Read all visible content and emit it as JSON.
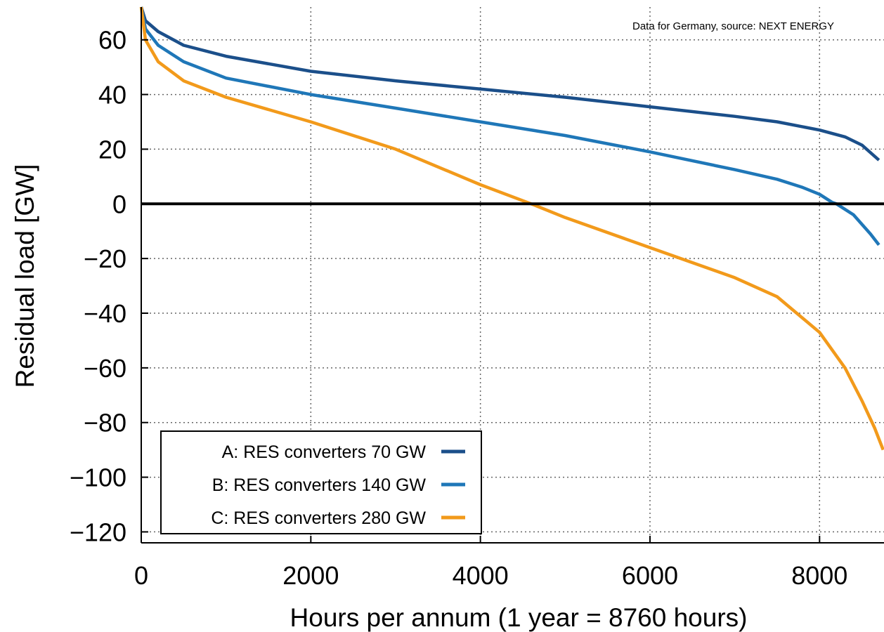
{
  "chart_data": {
    "type": "line",
    "source_note": "Data for Germany, source: NEXT ENERGY",
    "xlabel": "Hours per annum (1 year = 8760 hours)",
    "ylabel": "Residual load [GW]",
    "xlim": [
      0,
      8760
    ],
    "ylim": [
      -124,
      72
    ],
    "xticks": [
      0,
      2000,
      4000,
      6000,
      8000
    ],
    "xtick_labels": [
      "0",
      "2000",
      "4000",
      "6000",
      "8000"
    ],
    "yticks": [
      60,
      40,
      20,
      0,
      -20,
      -40,
      -60,
      -80,
      -100,
      -120
    ],
    "ytick_labels": [
      "60",
      "40",
      "20",
      "0",
      "−20",
      "−40",
      "−60",
      "−80",
      "−100",
      "−120"
    ],
    "grid": true,
    "zero_line": true,
    "legend_position": "bottom-left",
    "series": [
      {
        "name": "A: RES converters   70 GW",
        "color": "#1b4f8a",
        "x": [
          0,
          50,
          200,
          500,
          1000,
          2000,
          3000,
          4000,
          5000,
          6000,
          7000,
          7500,
          8000,
          8300,
          8500,
          8700
        ],
        "y": [
          72,
          67,
          63,
          58,
          54,
          48.5,
          45,
          42,
          39,
          35.5,
          32,
          30,
          27,
          24.5,
          21.5,
          16
        ]
      },
      {
        "name": "B: RES converters 140 GW",
        "color": "#1f77b8",
        "x": [
          0,
          50,
          200,
          500,
          1000,
          2000,
          3000,
          4000,
          5000,
          6000,
          7000,
          7500,
          7800,
          8000,
          8150,
          8200,
          8400,
          8600,
          8700
        ],
        "y": [
          72,
          64,
          58,
          52,
          46,
          40,
          35,
          30,
          25,
          19,
          12.5,
          9,
          6,
          3.5,
          0.5,
          0,
          -4,
          -11,
          -15
        ]
      },
      {
        "name": "C: RES converters 280 GW",
        "color": "#f29a1b",
        "x": [
          0,
          50,
          200,
          500,
          1000,
          2000,
          3000,
          4000,
          4600,
          5000,
          6000,
          7000,
          7500,
          8000,
          8300,
          8500,
          8650,
          8750
        ],
        "y": [
          72,
          60,
          52,
          45,
          39,
          30,
          20,
          7,
          0,
          -5,
          -16,
          -27,
          -34,
          -47,
          -60,
          -72,
          -82,
          -90
        ]
      }
    ]
  }
}
